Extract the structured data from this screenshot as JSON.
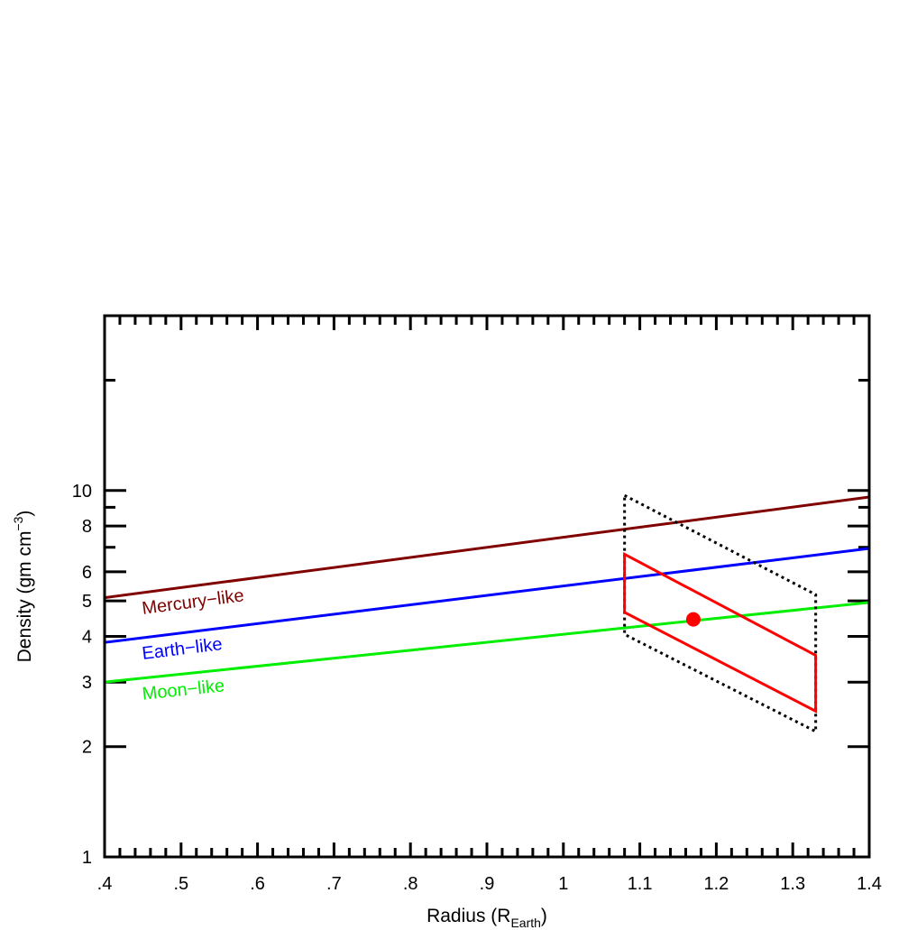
{
  "chart_data": {
    "type": "line",
    "x_axis": {
      "label_main": "Radius (R",
      "label_sub": "Earth",
      "label_close": ")",
      "range": [
        0.4,
        1.4
      ],
      "ticks": [
        0.4,
        0.5,
        0.6,
        0.7,
        0.8,
        0.9,
        1.0,
        1.1,
        1.2,
        1.3,
        1.4
      ],
      "tick_labels": [
        ".4",
        ".5",
        ".6",
        ".7",
        ".8",
        ".9",
        "1",
        "1.1",
        "1.2",
        "1.3",
        "1.4"
      ]
    },
    "y_axis": {
      "label_main": "Density (gm cm",
      "label_sup": "−3",
      "label_close": ")",
      "scale": "log",
      "range": [
        1,
        30
      ],
      "ticks": [
        1,
        2,
        3,
        4,
        5,
        6,
        8,
        10
      ],
      "tick_labels": [
        "1",
        "2",
        "3",
        "4",
        "5",
        "6",
        "8",
        "10"
      ]
    },
    "series": [
      {
        "name": "Mercury-like",
        "label": "Mercury−like",
        "color": "#800000",
        "x": [
          0.4,
          1.4
        ],
        "y": [
          5.1,
          9.6
        ]
      },
      {
        "name": "Earth-like",
        "label": "Earth−like",
        "color": "#0000ff",
        "x": [
          0.4,
          1.4
        ],
        "y": [
          3.85,
          6.95
        ]
      },
      {
        "name": "Moon-like",
        "label": "Moon−like",
        "color": "#00ee00",
        "x": [
          0.4,
          1.4
        ],
        "y": [
          3.0,
          4.95
        ]
      }
    ],
    "error_region_inner": {
      "color": "#ff0000",
      "points": [
        [
          1.08,
          6.7
        ],
        [
          1.33,
          3.55
        ],
        [
          1.33,
          2.5
        ],
        [
          1.08,
          4.65
        ]
      ]
    },
    "error_region_outer": {
      "color": "#000000",
      "style": "dotted",
      "points": [
        [
          1.08,
          9.7
        ],
        [
          1.33,
          5.2
        ],
        [
          1.33,
          2.2
        ],
        [
          1.08,
          4.05
        ]
      ]
    },
    "measurement": {
      "color": "#ff0000",
      "x": 1.17,
      "y": 4.45
    }
  }
}
